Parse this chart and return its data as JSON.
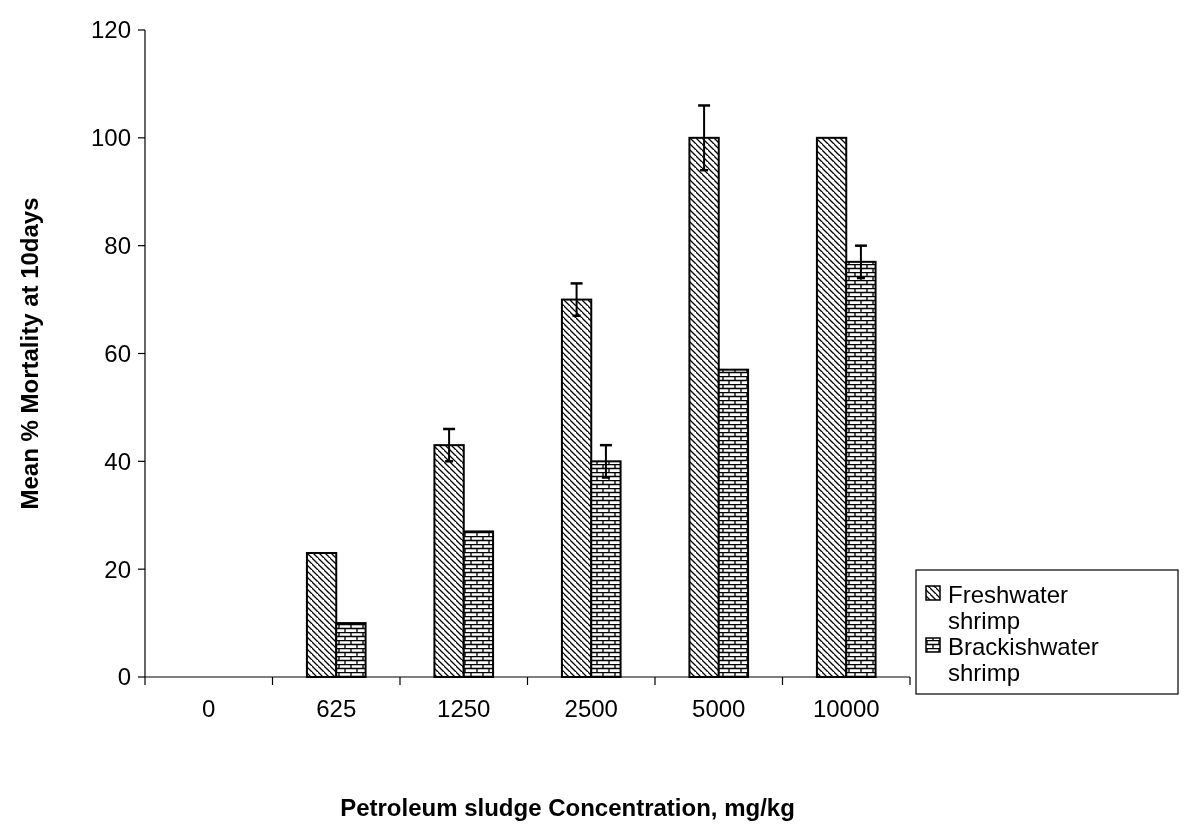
{
  "chart_data": {
    "type": "bar",
    "xlabel": "Petroleum sludge Concentration, mg/kg",
    "ylabel": "Mean % Mortality at 10days",
    "categories": [
      "0",
      "625",
      "1250",
      "2500",
      "5000",
      "10000"
    ],
    "series": [
      {
        "name": "Freshwater shrimp",
        "color": "#000000",
        "values": [
          0,
          23,
          43,
          70,
          100,
          100
        ],
        "errors": [
          null,
          null,
          3,
          3,
          6,
          null
        ]
      },
      {
        "name": "Brackishwater shrimp",
        "color": "#000000",
        "values": [
          0,
          10,
          27,
          40,
          57,
          77
        ],
        "errors": [
          null,
          null,
          null,
          3,
          null,
          3
        ]
      }
    ],
    "ylim": [
      0,
      120
    ],
    "yticks": [
      0,
      20,
      40,
      60,
      80,
      100,
      120
    ],
    "grid": false,
    "legend": "right"
  }
}
